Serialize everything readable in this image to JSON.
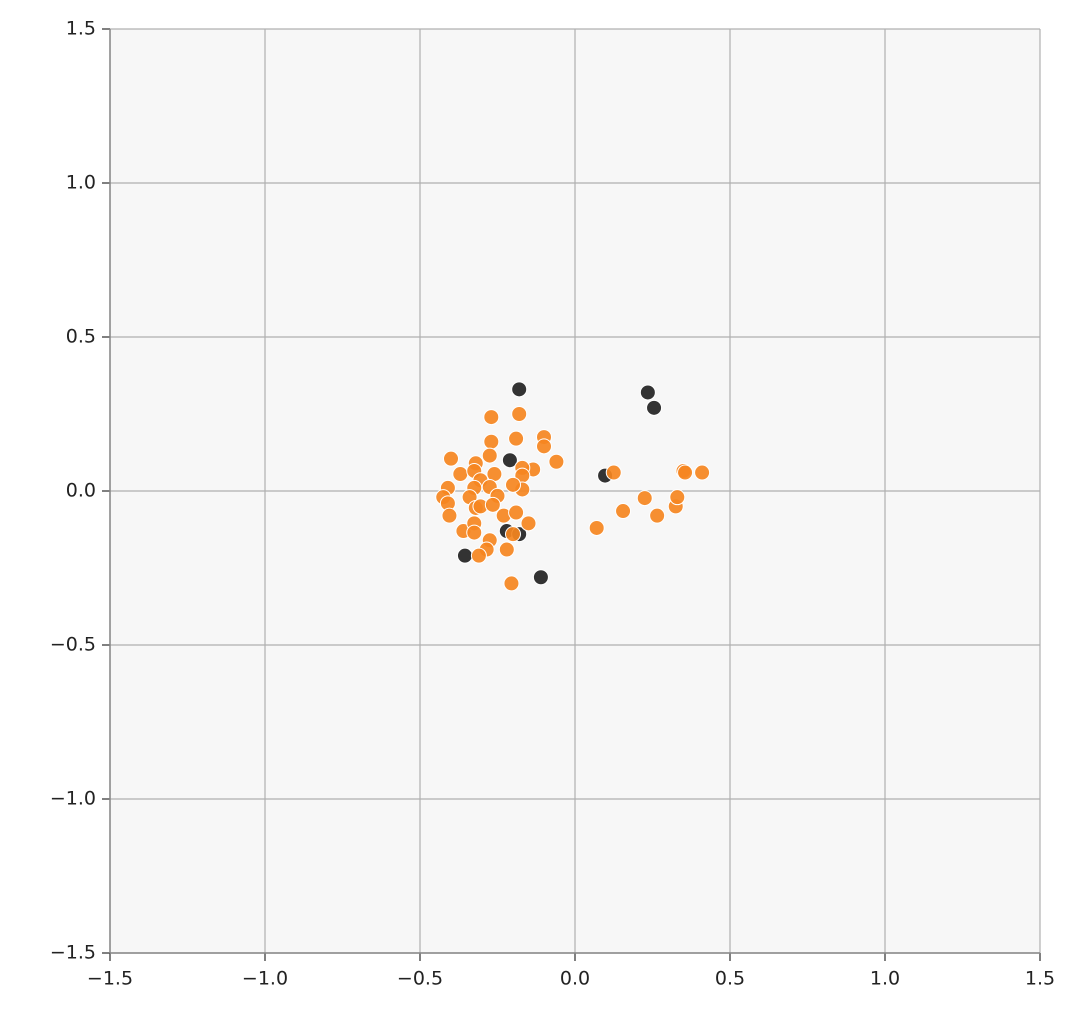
{
  "chart_data": {
    "type": "scatter",
    "xlim": [
      -1.5,
      1.5
    ],
    "ylim": [
      -1.5,
      1.5
    ],
    "xticks": [
      {
        "value": -1.5,
        "label": "−1.5"
      },
      {
        "value": -1.0,
        "label": "−1.0"
      },
      {
        "value": -0.5,
        "label": "−0.5"
      },
      {
        "value": 0,
        "label": "0.0"
      },
      0.5,
      {
        "value": 1.0,
        "label": "1.0"
      },
      1.5
    ],
    "yticks": [
      {
        "value": -1.5,
        "label": "−1.5"
      },
      {
        "value": -1.0,
        "label": "−1.0"
      },
      {
        "value": -0.5,
        "label": "−0.5"
      },
      {
        "value": 0,
        "label": "0.0"
      },
      0.5,
      {
        "value": 1.0,
        "label": "1.0"
      },
      1.5
    ],
    "grid": true,
    "series": [
      {
        "color": "#222222",
        "x": [
          -0.18,
          0.235,
          0.255,
          -0.21,
          0.097,
          -0.22,
          -0.18,
          -0.355,
          -0.11
        ],
        "values": [
          0.33,
          0.32,
          0.27,
          0.1,
          0.05,
          -0.13,
          -0.14,
          -0.21,
          -0.28
        ]
      },
      {
        "color": "#f5861f",
        "x": [
          -0.27,
          -0.18,
          -0.27,
          -0.19,
          -0.1,
          -0.1,
          -0.06,
          -0.135,
          -0.17,
          -0.17,
          -0.17,
          -0.2,
          -0.4,
          -0.37,
          -0.41,
          -0.425,
          -0.41,
          -0.405,
          -0.36,
          -0.32,
          -0.325,
          -0.305,
          -0.325,
          -0.34,
          -0.32,
          -0.305,
          -0.275,
          -0.26,
          -0.275,
          -0.25,
          -0.265,
          -0.23,
          -0.19,
          -0.15,
          -0.325,
          -0.325,
          -0.275,
          -0.285,
          -0.31,
          -0.22,
          -0.2,
          -0.205,
          0.07,
          0.125,
          0.225,
          0.155,
          0.265,
          0.325,
          0.33,
          0.35,
          0.355,
          0.41
        ],
        "values": [
          0.24,
          0.25,
          0.16,
          0.17,
          0.175,
          0.145,
          0.095,
          0.07,
          0.075,
          0.05,
          0.005,
          0.02,
          0.105,
          0.055,
          0.01,
          -0.02,
          -0.04,
          -0.08,
          -0.13,
          0.09,
          0.065,
          0.035,
          0.01,
          -0.02,
          -0.055,
          -0.05,
          0.115,
          0.055,
          0.013,
          -0.016,
          -0.045,
          -0.08,
          -0.07,
          -0.105,
          -0.105,
          -0.135,
          -0.16,
          -0.19,
          -0.21,
          -0.19,
          -0.14,
          -0.3,
          -0.12,
          0.06,
          -0.023,
          -0.065,
          -0.08,
          -0.05,
          -0.02,
          0.065,
          0.06,
          0.06
        ]
      }
    ]
  }
}
